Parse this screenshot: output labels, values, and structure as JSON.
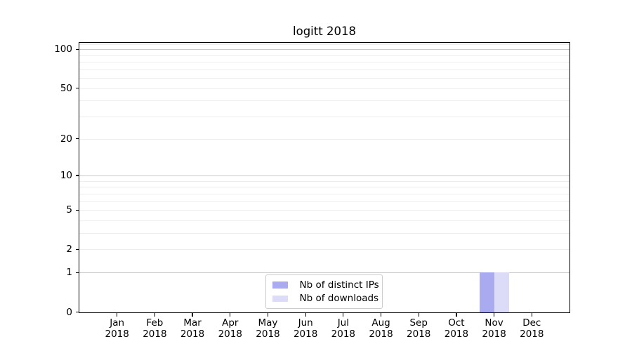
{
  "chart_data": {
    "type": "bar",
    "title": "logitt 2018",
    "xlabel": "",
    "ylabel": "",
    "yscale": "log1p",
    "ylim": [
      0,
      113
    ],
    "grid": "horizontal",
    "legend_position": "inside-bottom-center",
    "categories": [
      "Jan 2018",
      "Feb 2018",
      "Mar 2018",
      "Apr 2018",
      "May 2018",
      "Jun 2018",
      "Jul 2018",
      "Aug 2018",
      "Sep 2018",
      "Oct 2018",
      "Nov 2018",
      "Dec 2018"
    ],
    "yticks": [
      0,
      1,
      2,
      5,
      10,
      20,
      50,
      100
    ],
    "major_gridlines": [
      1,
      10,
      100
    ],
    "minor_gridlines": [
      2,
      3,
      4,
      5,
      6,
      7,
      8,
      9,
      20,
      30,
      40,
      50,
      60,
      70,
      80,
      90,
      110
    ],
    "series": [
      {
        "name": "Nb of distinct IPs",
        "color": "#aaaaf0",
        "values": [
          0,
          0,
          0,
          0,
          0,
          0,
          0,
          0,
          0,
          0,
          1,
          0
        ]
      },
      {
        "name": "Nb of downloads",
        "color": "#dcdcf8",
        "values": [
          0,
          0,
          0,
          0,
          0,
          0,
          0,
          0,
          0,
          0,
          1,
          0
        ]
      }
    ]
  }
}
